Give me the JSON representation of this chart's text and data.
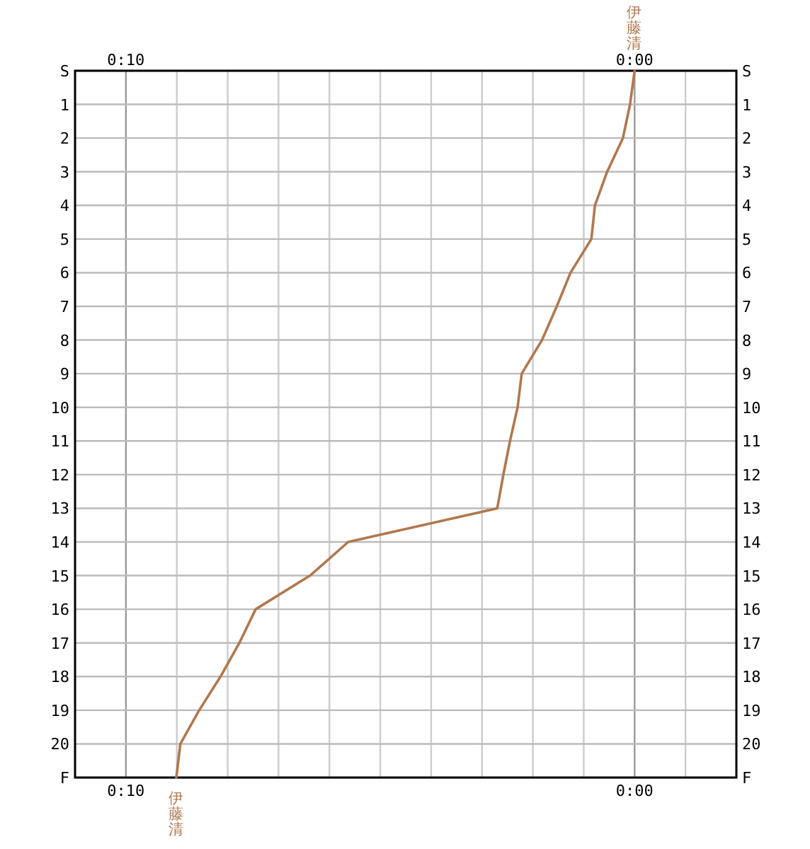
{
  "chart_data": {
    "type": "line",
    "orientation": "horizontal",
    "grid": true,
    "categories": [
      "S",
      "1",
      "2",
      "3",
      "4",
      "5",
      "6",
      "7",
      "8",
      "9",
      "10",
      "11",
      "12",
      "13",
      "14",
      "15",
      "16",
      "17",
      "18",
      "19",
      "20",
      "F"
    ],
    "xlim": [
      11,
      -2
    ],
    "xticks": [
      {
        "value": 10,
        "label": "0:10"
      },
      {
        "value": 9,
        "label": null
      },
      {
        "value": 8,
        "label": null
      },
      {
        "value": 7,
        "label": null
      },
      {
        "value": 6,
        "label": null
      },
      {
        "value": 5,
        "label": null
      },
      {
        "value": 4,
        "label": null
      },
      {
        "value": 3,
        "label": null
      },
      {
        "value": 2,
        "label": null
      },
      {
        "value": 1,
        "label": null
      },
      {
        "value": 0,
        "label": "0:00"
      },
      {
        "value": -1,
        "label": null
      }
    ],
    "x2lim": [
      11,
      -2
    ],
    "x2ticks": [
      {
        "value": 10,
        "label": "0:10"
      },
      {
        "value": 0,
        "label": "0:00"
      }
    ],
    "series": [
      {
        "name": "伊藤清",
        "color": "#b0784f",
        "values": [
          0,
          0.09,
          0.23,
          0.54,
          0.78,
          0.85,
          1.26,
          1.53,
          1.82,
          2.22,
          2.3,
          2.45,
          2.58,
          2.7,
          5.63,
          6.38,
          7.45,
          7.77,
          8.14,
          8.56,
          8.93,
          9.01
        ]
      }
    ]
  }
}
